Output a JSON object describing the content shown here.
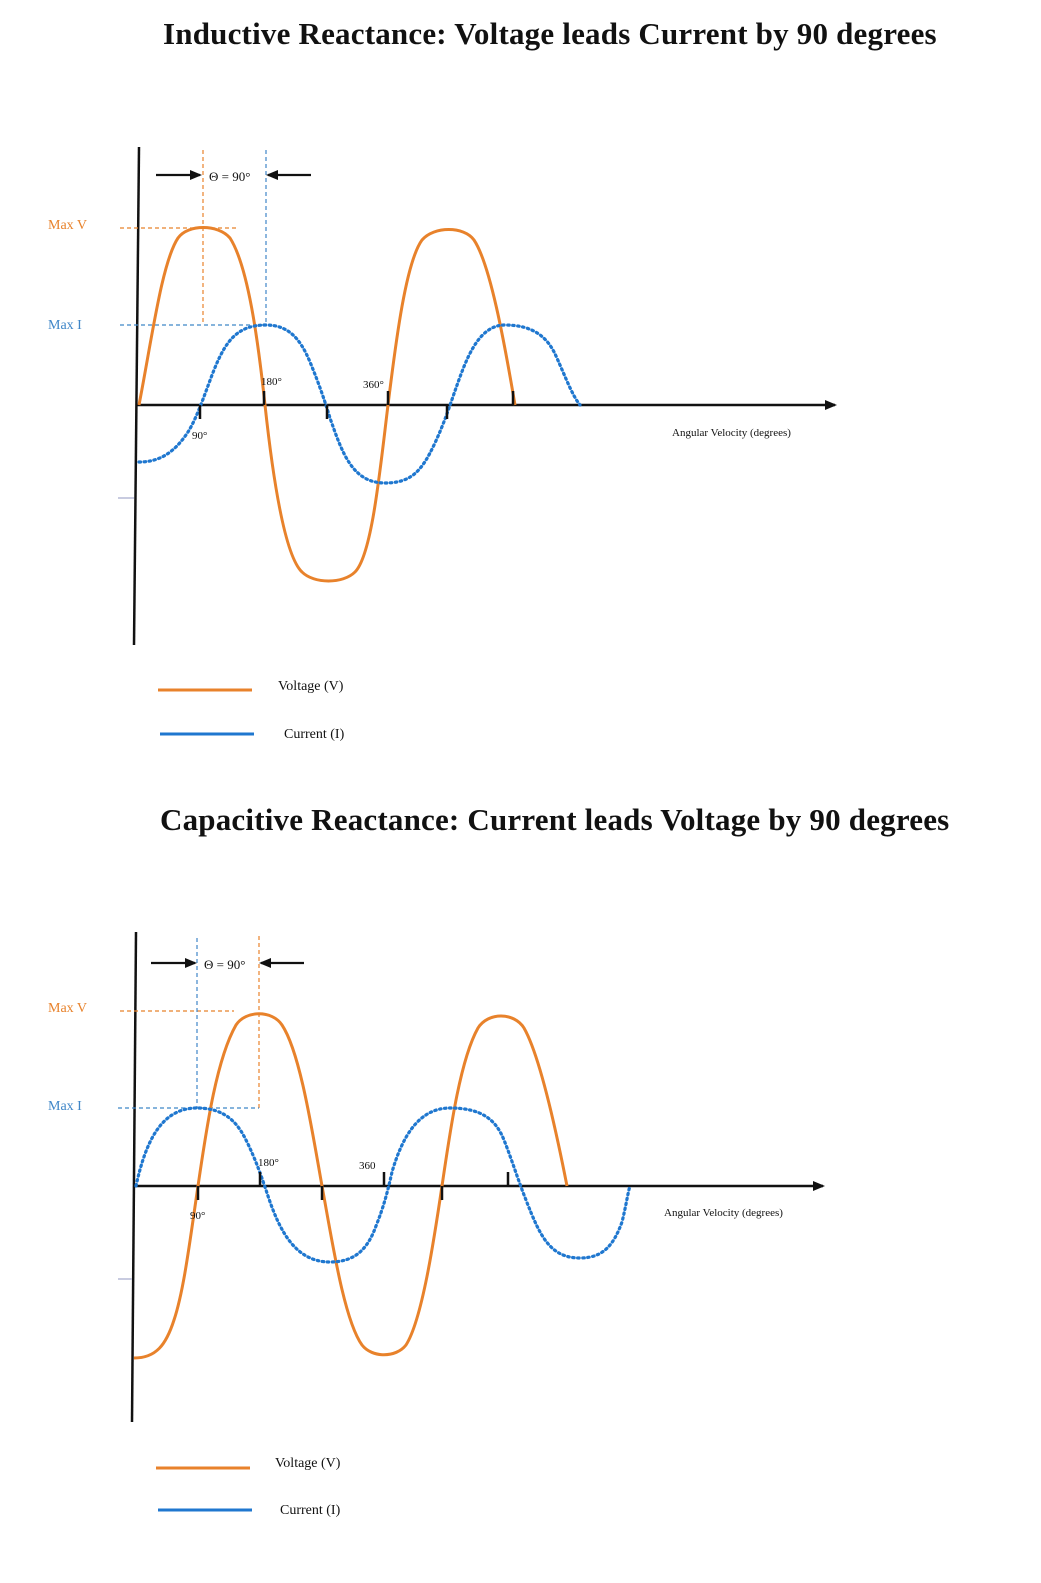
{
  "colors": {
    "voltage": "#E8822B",
    "current": "#1F77CF",
    "axis": "#111111",
    "max_v_label": "#E8822B",
    "max_i_label": "#3F86C8"
  },
  "diagrams": [
    {
      "title": "Inductive Reactance: Voltage leads Current by 90 degrees",
      "phase_label": "Θ = 90°",
      "max_v_label": "Max V",
      "max_i_label": "Max I",
      "x_axis_label": "Angular Velocity (degrees)",
      "tick_labels": [
        "90°",
        "180°",
        "360°"
      ],
      "legend": [
        {
          "label": "Voltage (V)",
          "color": "#E8822B"
        },
        {
          "label": "Current (I)",
          "color": "#1F77CF"
        }
      ]
    },
    {
      "title": "Capacitive Reactance: Current leads Voltage by 90 degrees",
      "phase_label": "Θ = 90°",
      "max_v_label": "Max V",
      "max_i_label": "Max I",
      "x_axis_label": "Angular Velocity (degrees)",
      "tick_labels": [
        "90°",
        "180°",
        "360"
      ],
      "legend": [
        {
          "label": "Voltage (V)",
          "color": "#E8822B"
        },
        {
          "label": "Current (I)",
          "color": "#1F77CF"
        }
      ]
    }
  ]
}
